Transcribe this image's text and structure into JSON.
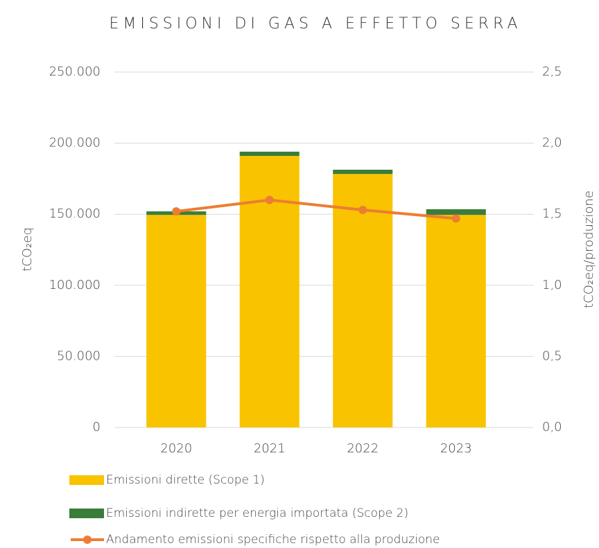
{
  "chart_data": {
    "type": "bar",
    "title": "EMISSIONI DI GAS A EFFETTO SERRA",
    "y_label": "tCO₂eq",
    "y2_label": "tCO₂eq/produzione",
    "categories": [
      "2020",
      "2021",
      "2022",
      "2023"
    ],
    "stacked": true,
    "series": [
      {
        "name": "Emissioni dirette (Scope 1)",
        "color": "#f9c300",
        "type": "bar",
        "values": [
          149500,
          191000,
          178300,
          149500
        ]
      },
      {
        "name": "Emissioni indirette per energia importata (Scope 2)",
        "color": "#3a7d3a",
        "type": "bar",
        "values": [
          2500,
          3000,
          3000,
          4000
        ]
      },
      {
        "name": "Andamento emissioni specifiche rispetto alla produzione",
        "color": "#ed7d31",
        "type": "line",
        "axis": "y2",
        "values": [
          1.52,
          1.6,
          1.53,
          1.47
        ]
      }
    ],
    "ylim": [
      0,
      250000
    ],
    "yticks": [
      0,
      {
        "value": 50000,
        "label": "50.000"
      },
      {
        "value": 100000,
        "label": "100.000"
      },
      {
        "value": 150000,
        "label": "150.000"
      },
      {
        "value": 200000,
        "label": "200.000"
      },
      {
        "value": 250000,
        "label": "250.000"
      }
    ],
    "y2lim": [
      0,
      2.5
    ],
    "y2ticks": [
      {
        "value": 0,
        "label": "0,0"
      },
      {
        "value": 0.5,
        "label": "0,5"
      },
      {
        "value": 1,
        "label": "1,0"
      },
      {
        "value": 1.5,
        "label": "1,5"
      },
      {
        "value": 2,
        "label": "2,0"
      },
      {
        "value": 2.5,
        "label": "2,5"
      }
    ],
    "grid": true,
    "legend": "bottom"
  }
}
